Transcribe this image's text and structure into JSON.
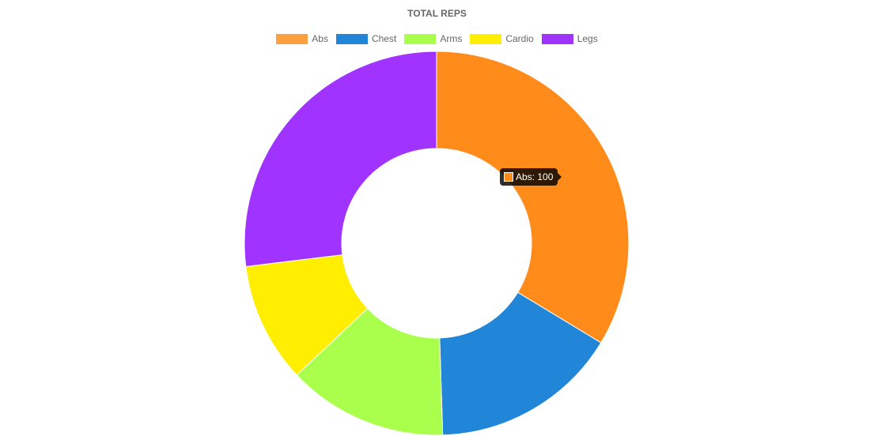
{
  "chart_data": {
    "type": "pie",
    "title": "TOTAL REPS",
    "donut": true,
    "legend_position": "top",
    "categories": [
      "Abs",
      "Chest",
      "Arms",
      "Cardio",
      "Legs"
    ],
    "values": [
      100,
      47,
      40,
      30,
      80
    ],
    "colors": [
      "#ff8c1a",
      "#2185d8",
      "#aaff4d",
      "#ffee00",
      "#a033ff"
    ],
    "legend_colors": [
      "#ffa040",
      "#2185d8",
      "#aaff4d",
      "#ffee00",
      "#a033ff"
    ]
  },
  "tooltip": {
    "text": "Abs: 100",
    "color": "#ff8c1a"
  }
}
